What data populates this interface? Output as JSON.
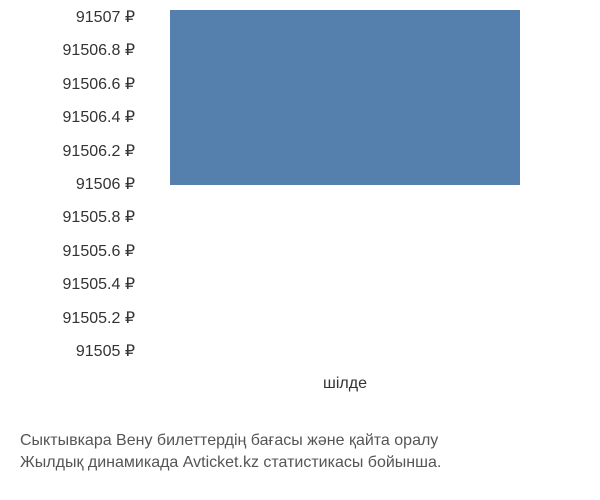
{
  "chart": {
    "type": "bar",
    "y_ticks": [
      "91507 ₽",
      "91506.8 ₽",
      "91506.6 ₽",
      "91506.4 ₽",
      "91506.2 ₽",
      "91506 ₽",
      "91505.8 ₽",
      "91505.6 ₽",
      "91505.4 ₽",
      "91505.2 ₽",
      "91505 ₽"
    ],
    "ylim": [
      91505,
      91507
    ],
    "x_label": "шілде",
    "bar_value": 91507,
    "bar_base": 91506,
    "bar_color": "#5580ad",
    "background_color": "#ffffff",
    "tick_fontsize": 16,
    "tick_color": "#333333",
    "caption_line1": "Сыктывкара Вену билеттердің бағасы және қайта оралу",
    "caption_line2": "Жылдық динамикада Avticket.kz статистикасы бойынша.",
    "caption_color": "#555555",
    "caption_fontsize": 16
  }
}
